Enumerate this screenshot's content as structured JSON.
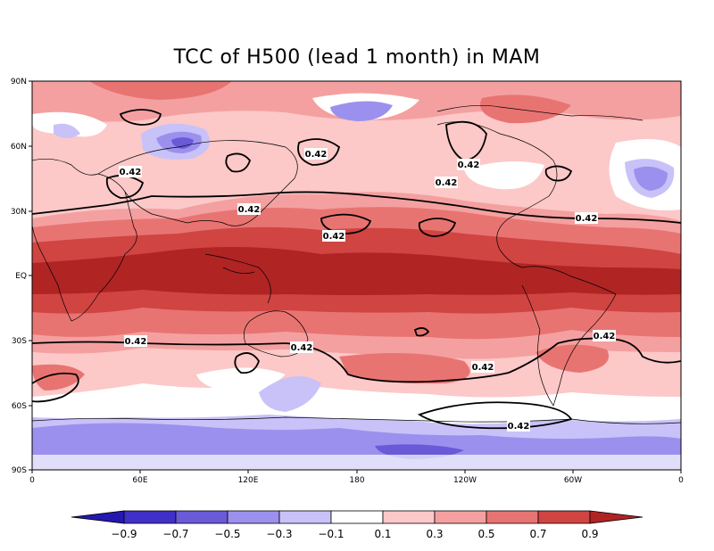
{
  "title": "TCC of H500 (lead 1 month) in MAM",
  "lat_ticks": [
    "90N",
    "60N",
    "30N",
    "EQ",
    "30S",
    "60S",
    "90S"
  ],
  "lon_ticks": [
    "0",
    "60E",
    "120E",
    "180",
    "120W",
    "60W",
    "0"
  ],
  "contour_label": "0.42",
  "colorbar": {
    "colors": [
      "#2418b0",
      "#4030c8",
      "#6a5ad8",
      "#9c90ee",
      "#c8c2f8",
      "#ffffff",
      "#fcc8c8",
      "#f4a0a0",
      "#e87472",
      "#d04442",
      "#b02424"
    ],
    "labels": [
      "−0.9",
      "−0.7",
      "−0.5",
      "−0.3",
      "−0.1",
      "0.1",
      "0.3",
      "0.5",
      "0.7",
      "0.9"
    ]
  },
  "palette": {
    "strong_neg": "#6a5ad8",
    "neg": "#9c90ee",
    "weak_neg": "#c8c2f8",
    "zero": "#ffffff",
    "weak_pos": "#fcc8c8",
    "pos": "#f4a0a0",
    "mid_pos": "#e87472",
    "high_pos": "#d04442",
    "max_pos": "#b02424"
  }
}
